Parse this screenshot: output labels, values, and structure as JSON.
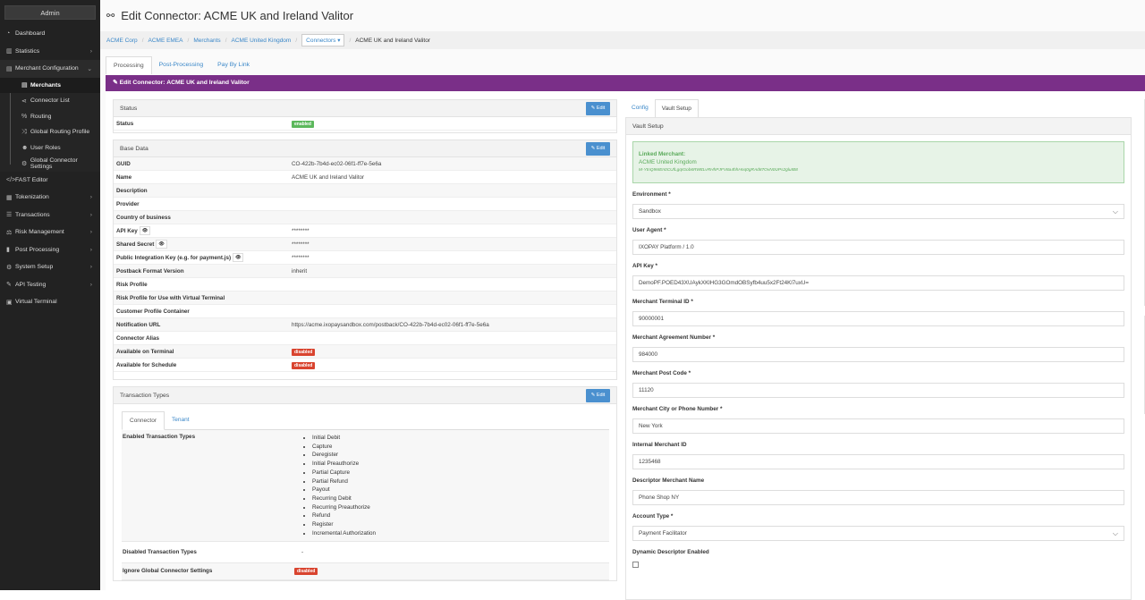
{
  "sidebar": {
    "header": "Admin",
    "items": [
      {
        "label": "Dashboard",
        "icon": "dashboard-icon",
        "glyph": "◔"
      },
      {
        "label": "Statistics",
        "icon": "bar-chart-icon",
        "glyph": "▥",
        "chev": true
      },
      {
        "label": "Merchant Configuration",
        "icon": "briefcase-icon",
        "glyph": "▤",
        "chev": true,
        "open": true
      }
    ],
    "sub_items": [
      {
        "label": "Merchants",
        "icon": "briefcase-icon",
        "glyph": "▤",
        "active": true
      },
      {
        "label": "Connector List",
        "icon": "share-icon",
        "glyph": "⋖"
      },
      {
        "label": "Routing",
        "icon": "percent-icon",
        "glyph": "%"
      },
      {
        "label": "Global Routing Profile",
        "icon": "random-icon",
        "glyph": "⤨"
      },
      {
        "label": "User Roles",
        "icon": "users-icon",
        "glyph": "☻"
      },
      {
        "label": "Global Connector Settings",
        "icon": "gear-icon",
        "glyph": "⚙"
      }
    ],
    "items2": [
      {
        "label": "FAST Editor",
        "icon": "code-icon",
        "glyph": "</>"
      },
      {
        "label": "Tokenization",
        "icon": "token-icon",
        "glyph": "▦",
        "chev": true
      },
      {
        "label": "Transactions",
        "icon": "list-icon",
        "glyph": "☰",
        "chev": true
      },
      {
        "label": "Risk Management",
        "icon": "balance-scale-icon",
        "glyph": "⚖",
        "chev": true
      },
      {
        "label": "Post Processing",
        "icon": "file-icon",
        "glyph": "▮",
        "chev": true
      },
      {
        "label": "System Setup",
        "icon": "gear-icon",
        "glyph": "⚙",
        "chev": true
      },
      {
        "label": "API Testing",
        "icon": "flask-icon",
        "glyph": "✎",
        "chev": true
      },
      {
        "label": "Virtual Terminal",
        "icon": "calculator-icon",
        "glyph": "▣"
      }
    ]
  },
  "header": {
    "title": "Edit Connector: ACME UK and Ireland Valitor",
    "icon": "connector-link-icon"
  },
  "breadcrumb": {
    "items": [
      "ACME Corp",
      "ACME EMEA",
      "Merchants",
      "ACME United Kingdom"
    ],
    "dropdown": "Connectors ▾",
    "current": "ACME UK and Ireland Valitor"
  },
  "page_tabs": [
    "Processing",
    "Post-Processing",
    "Pay By Link"
  ],
  "banner": "Edit Connector: ACME UK and Ireland Valitor",
  "edit_label": "Edit",
  "status_panel": {
    "title": "Status",
    "label": "Status",
    "value": "enabled"
  },
  "base_panel": {
    "title": "Base Data",
    "rows": [
      {
        "k": "GUID",
        "v": "CO-422b-7b4d-ec02-06f1-ff7e-5e6a"
      },
      {
        "k": "Name",
        "v": "ACME UK and Ireland Valitor"
      },
      {
        "k": "Description",
        "v": ""
      },
      {
        "k": "Provider",
        "v": ""
      },
      {
        "k": "Country of business",
        "v": ""
      },
      {
        "k": "API Key",
        "v": "********",
        "eye": true
      },
      {
        "k": "Shared Secret",
        "v": "********",
        "eye": true
      },
      {
        "k": "Public Integration Key (e.g. for payment.js)",
        "v": "********",
        "eye": true
      },
      {
        "k": "Postback Format Version",
        "v": "inherit"
      },
      {
        "k": "Risk Profile",
        "v": ""
      },
      {
        "k": "Risk Profile for Use with Virtual Terminal",
        "v": ""
      },
      {
        "k": "Customer Profile Container",
        "v": ""
      },
      {
        "k": "Notification URL",
        "v": "https://acme.ixopaysandbox.com/postback/CO-422b-7b4d-ec02-06f1-ff7e-5e6a"
      },
      {
        "k": "Connector Alias",
        "v": ""
      },
      {
        "k": "Available on Terminal",
        "badge": "disabled"
      },
      {
        "k": "Available for Schedule",
        "badge": "disabled"
      }
    ]
  },
  "tx_panel": {
    "title": "Transaction Types",
    "tabs": [
      "Connector",
      "Tenant"
    ],
    "enabled_label": "Enabled Transaction Types",
    "enabled": [
      "Initial Debit",
      "Capture",
      "Deregister",
      "Initial Preauthorize",
      "Partial Capture",
      "Partial Refund",
      "Payout",
      "Recurring Debit",
      "Recurring Preauthorize",
      "Refund",
      "Register",
      "Incremental Authorization"
    ],
    "disabled_label": "Disabled Transaction Types",
    "disabled_value": "-",
    "ignore_label": "Ignore Global Connector Settings",
    "ignore_value": "disabled"
  },
  "right": {
    "tabs": [
      "Config",
      "Vault Setup"
    ],
    "panel_title": "Vault Setup",
    "linked": {
      "title": "Linked Merchant:",
      "name": "ACME United Kingdom",
      "id": "M-YtnQ9MEn0CUfLgqIGob6RWttLvRHhPJFV8a4hhHnq0gRAd87OvN0UPs2gluIB8"
    },
    "fields": [
      {
        "label": "Environment *",
        "value": "Sandbox",
        "select": true
      },
      {
        "label": "User Agent *",
        "value": "IXOPAY Platform / 1.0"
      },
      {
        "label": "API Key *",
        "value": "DemoPF.POED43XUAykXKlHG3GOmdOBSyfb4uu5x2Ft24Kl7uxU="
      },
      {
        "label": "Merchant Terminal ID *",
        "value": "90000001"
      },
      {
        "label": "Merchant Agreement Number *",
        "value": "984000"
      },
      {
        "label": "Merchant Post Code *",
        "value": "11120"
      },
      {
        "label": "Merchant City or Phone Number *",
        "value": "New York"
      },
      {
        "label": "Internal Merchant ID",
        "value": "1235468"
      },
      {
        "label": "Descriptor Merchant Name",
        "value": "Phone Shop NY"
      },
      {
        "label": "Account Type *",
        "value": "Payment Facilitator",
        "select": true
      }
    ],
    "checkbox_label": "Dynamic Descriptor Enabled",
    "checkbox_checked": false
  },
  "colors": {
    "sidebar": "#222222",
    "banner": "#7a2f88",
    "link": "#3a87c8",
    "edit": "#4a90cf",
    "enabled": "#5cb85c",
    "disabled": "#d9442f"
  }
}
